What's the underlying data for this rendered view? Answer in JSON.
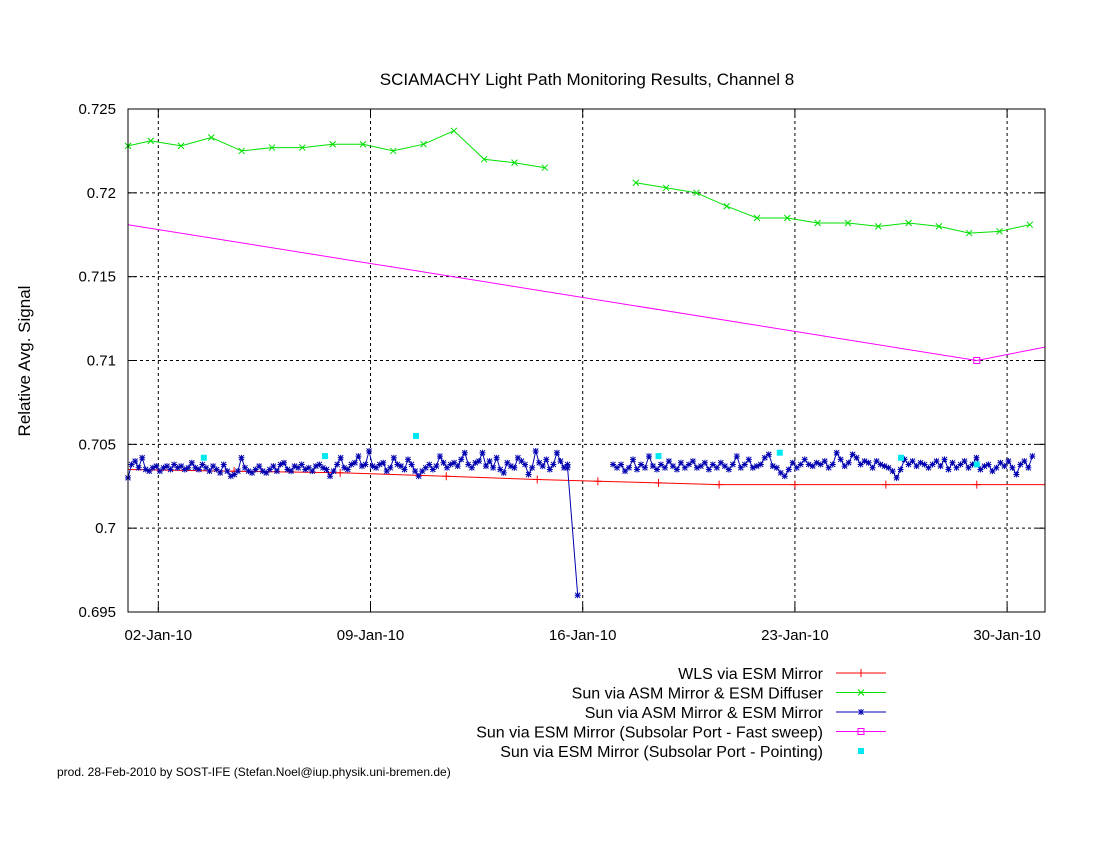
{
  "chart_data": {
    "type": "line",
    "title": "SCIAMACHY Light Path Monitoring Results, Channel 8",
    "xlabel": "",
    "ylabel": "Relative Avg. Signal",
    "x_axis_type": "date",
    "xlim": [
      "2010-01-01 00:00",
      "2010-01-31 06:00"
    ],
    "ylim": [
      0.695,
      0.725
    ],
    "x_ticks": [
      {
        "date": "2010-01-02",
        "label": "02-Jan-10"
      },
      {
        "date": "2010-01-09",
        "label": "09-Jan-10"
      },
      {
        "date": "2010-01-16",
        "label": "16-Jan-10"
      },
      {
        "date": "2010-01-23",
        "label": "23-Jan-10"
      },
      {
        "date": "2010-01-30",
        "label": "30-Jan-10"
      }
    ],
    "y_ticks": [
      {
        "value": 0.695,
        "label": "0.695"
      },
      {
        "value": 0.7,
        "label": "0.7"
      },
      {
        "value": 0.705,
        "label": "0.705"
      },
      {
        "value": 0.71,
        "label": "0.71"
      },
      {
        "value": 0.715,
        "label": "0.715"
      },
      {
        "value": 0.72,
        "label": "0.72"
      },
      {
        "value": 0.725,
        "label": "0.725"
      }
    ],
    "grid": "dashed, at major ticks",
    "legend_position": "bottom-right",
    "series": [
      {
        "name": "WLS via ESM Mirror",
        "color": "#ff0000",
        "style": "line-with-plus-markers",
        "points": [
          [
            "2010-01-01 00:00",
            0.7035
          ],
          [
            "2010-01-04 12:00",
            0.7034
          ],
          [
            "2010-01-08 00:00",
            0.7033
          ],
          [
            "2010-01-11 12:00",
            0.7031
          ],
          [
            "2010-01-14 12:00",
            0.7029
          ],
          [
            "2010-01-16 12:00",
            0.7028
          ],
          [
            "2010-01-18 12:00",
            0.7027
          ],
          [
            "2010-01-20 12:00",
            0.7026
          ],
          [
            "2010-01-23 00:00",
            0.7026
          ],
          [
            "2010-01-26 00:00",
            0.7026
          ],
          [
            "2010-01-29 00:00",
            0.7026
          ],
          [
            "2010-01-31 06:00",
            0.7026
          ]
        ]
      },
      {
        "name": "Sun via ASM Mirror & ESM Diffuser",
        "color": "#00e000",
        "style": "line-with-x-markers",
        "points": [
          [
            "2010-01-01 00:00",
            0.7228
          ],
          [
            "2010-01-01 18:00",
            0.7231
          ],
          [
            "2010-01-02 18:00",
            0.7228
          ],
          [
            "2010-01-03 18:00",
            0.7233
          ],
          [
            "2010-01-04 18:00",
            0.7225
          ],
          [
            "2010-01-05 18:00",
            0.7227
          ],
          [
            "2010-01-06 18:00",
            0.7227
          ],
          [
            "2010-01-07 18:00",
            0.7229
          ],
          [
            "2010-01-08 18:00",
            0.7229
          ],
          [
            "2010-01-09 18:00",
            0.7225
          ],
          [
            "2010-01-10 18:00",
            0.7229
          ],
          [
            "2010-01-11 18:00",
            0.7237
          ],
          [
            "2010-01-12 18:00",
            0.722
          ],
          [
            "2010-01-13 18:00",
            0.7218
          ],
          [
            "2010-01-14 18:00",
            0.7215
          ],
          null,
          [
            "2010-01-17 18:00",
            0.7206
          ],
          [
            "2010-01-18 18:00",
            0.7203
          ],
          [
            "2010-01-19 18:00",
            0.72
          ],
          [
            "2010-01-20 18:00",
            0.7192
          ],
          [
            "2010-01-21 18:00",
            0.7185
          ],
          [
            "2010-01-22 18:00",
            0.7185
          ],
          [
            "2010-01-23 18:00",
            0.7182
          ],
          [
            "2010-01-24 18:00",
            0.7182
          ],
          [
            "2010-01-25 18:00",
            0.718
          ],
          [
            "2010-01-26 18:00",
            0.7182
          ],
          [
            "2010-01-27 18:00",
            0.718
          ],
          [
            "2010-01-28 18:00",
            0.7176
          ],
          [
            "2010-01-29 18:00",
            0.7177
          ],
          [
            "2010-01-30 18:00",
            0.7181
          ]
        ]
      },
      {
        "name": "Sun via ASM Mirror & ESM Mirror",
        "color": "#0000b0",
        "style": "line-with-star-markers",
        "segments": [
          {
            "start": "2010-01-01 00:00",
            "end": "2010-01-15 12:00",
            "values": [
              0.703,
              0.7038,
              0.704,
              0.7036,
              0.7042,
              0.7035,
              0.7034,
              0.7036,
              0.7037,
              0.7034,
              0.7036,
              0.7037,
              0.7035,
              0.7038,
              0.7036,
              0.7037,
              0.7035,
              0.7036,
              0.7039,
              0.7036,
              0.7035,
              0.7038,
              0.7036,
              0.7034,
              0.7037,
              0.7035,
              0.7033,
              0.7038,
              0.7034,
              0.7031,
              0.7032,
              0.7034,
              0.7042,
              0.7036,
              0.7034,
              0.7033,
              0.7035,
              0.7037,
              0.7034,
              0.7033,
              0.7035,
              0.7037,
              0.7034,
              0.7038,
              0.7039,
              0.7035,
              0.7034,
              0.7037,
              0.7036,
              0.7038,
              0.7035,
              0.7036,
              0.7034,
              0.7037,
              0.7038,
              0.7036,
              0.7035,
              0.7031,
              0.7034,
              0.7038,
              0.7042,
              0.7036,
              0.7035,
              0.7038,
              0.7039,
              0.7043,
              0.7037,
              0.7038,
              0.7046,
              0.7037,
              0.7036,
              0.7038,
              0.7039,
              0.7034,
              0.7036,
              0.7042,
              0.7038,
              0.7037,
              0.7035,
              0.7041,
              0.7038,
              0.7034,
              0.7031,
              0.7034,
              0.7036,
              0.7038,
              0.7035,
              0.7037,
              0.7043,
              0.7039,
              0.7036,
              0.7038,
              0.7039,
              0.7037,
              0.7041,
              0.7045,
              0.7038,
              0.7036,
              0.7039,
              0.704,
              0.7045,
              0.7037,
              0.704,
              0.7036,
              0.7042,
              0.7035,
              0.7033,
              0.7039,
              0.7037,
              0.7036,
              0.7042,
              0.704,
              0.7038,
              0.7032,
              0.7036,
              0.7046,
              0.7039,
              0.7037,
              0.7041,
              0.7035,
              0.7038,
              0.7045,
              0.704,
              0.7036,
              0.7038
            ]
          },
          {
            "start": "2010-01-15 12:00",
            "end": "2010-01-15 20:00",
            "values": [
              0.7036,
              0.696
            ]
          },
          {
            "start": "2010-01-17 00:00",
            "end": "2010-01-30 20:00",
            "values": [
              0.7038,
              0.7036,
              0.7038,
              0.7034,
              0.7036,
              0.7041,
              0.7035,
              0.7038,
              0.7036,
              0.7043,
              0.7037,
              0.7035,
              0.7038,
              0.7036,
              0.704,
              0.7037,
              0.7035,
              0.7039,
              0.7036,
              0.7038,
              0.704,
              0.7036,
              0.7037,
              0.7039,
              0.7035,
              0.7038,
              0.7036,
              0.7039,
              0.7037,
              0.7035,
              0.7038,
              0.7043,
              0.7036,
              0.7038,
              0.7041,
              0.7036,
              0.7037,
              0.7038,
              0.7042,
              0.7044,
              0.7037,
              0.7036,
              0.7033,
              0.7031,
              0.7035,
              0.7039,
              0.7036,
              0.7038,
              0.7041,
              0.7038,
              0.7037,
              0.7039,
              0.7038,
              0.704,
              0.7036,
              0.7038,
              0.7045,
              0.7041,
              0.7037,
              0.7039,
              0.7044,
              0.7042,
              0.7038,
              0.704,
              0.7039,
              0.7036,
              0.704,
              0.7038,
              0.7037,
              0.7036,
              0.7034,
              0.703,
              0.7035,
              0.7041,
              0.7038,
              0.704,
              0.7037,
              0.7039,
              0.7038,
              0.7036,
              0.7038,
              0.704,
              0.7037,
              0.7041,
              0.7035,
              0.7039,
              0.7036,
              0.7038,
              0.704,
              0.7036,
              0.7038,
              0.7042,
              0.7035,
              0.7037,
              0.7038,
              0.7034,
              0.7036,
              0.7039,
              0.7037,
              0.704,
              0.7036,
              0.7032,
              0.7038,
              0.704,
              0.7036,
              0.7043
            ]
          }
        ]
      },
      {
        "name": "Sun via ESM Mirror (Subsolar Port - Fast sweep)",
        "color": "#ff00ff",
        "style": "line-with-square-markers",
        "points": [
          [
            "2010-01-01 00:00",
            0.7181
          ],
          [
            "2010-01-29 00:00",
            0.71
          ],
          [
            "2010-01-31 06:00",
            0.7108
          ]
        ],
        "marker_points": [
          [
            "2010-01-29 00:00",
            0.71
          ]
        ]
      },
      {
        "name": "Sun via ESM Mirror (Subsolar Port - Pointing)",
        "color": "#00e8f0",
        "style": "square-markers-only",
        "points": [
          [
            "2010-01-03 12:00",
            0.7042
          ],
          [
            "2010-01-07 12:00",
            0.7043
          ],
          [
            "2010-01-10 12:00",
            0.7055
          ],
          [
            "2010-01-18 12:00",
            0.7043
          ],
          [
            "2010-01-22 12:00",
            0.7045
          ],
          [
            "2010-01-26 12:00",
            0.7042
          ],
          [
            "2010-01-29 00:00",
            0.7038
          ]
        ]
      }
    ],
    "footer": "prod. 28-Feb-2010 by SOST-IFE (Stefan.Noel@iup.physik.uni-bremen.de)"
  }
}
